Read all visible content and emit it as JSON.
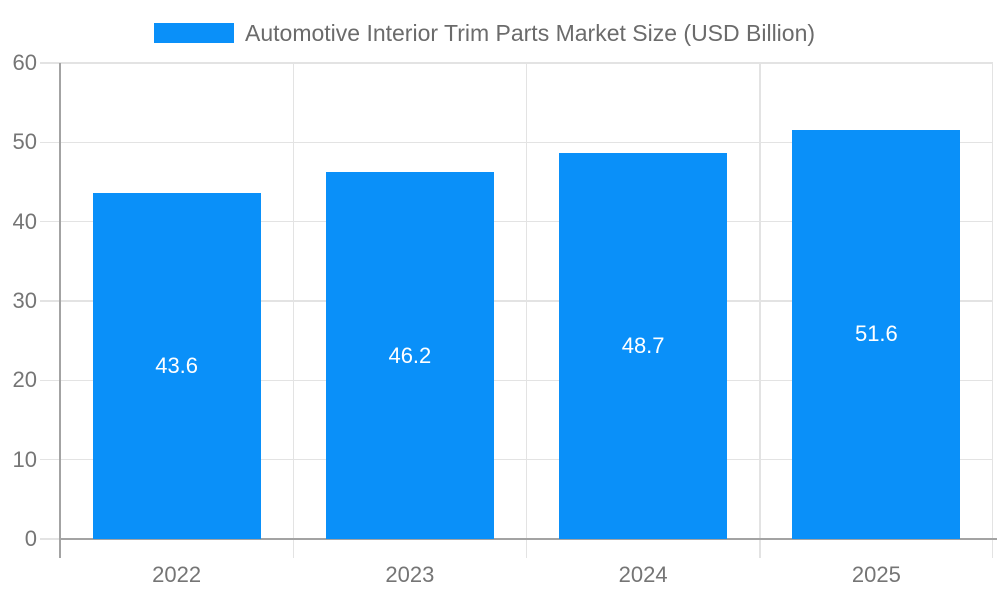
{
  "chart_data": {
    "type": "bar",
    "title": "Automotive Interior Trim Parts Market Size (USD Billion)",
    "categories": [
      "2022",
      "2023",
      "2024",
      "2025"
    ],
    "values": [
      43.6,
      46.2,
      48.7,
      51.6
    ],
    "value_labels": [
      "43.6",
      "46.2",
      "48.7",
      "51.6"
    ],
    "xlabel": "",
    "ylabel": "",
    "ylim": [
      0,
      60
    ],
    "yticks": [
      0,
      10,
      20,
      30,
      40,
      50,
      60
    ],
    "grid": true,
    "legend": {
      "position": "top",
      "label": "Automotive Interior Trim Parts Market Size (USD Billion)"
    },
    "colors": {
      "bar": "#0a90f9",
      "grid": "#e3e3e3",
      "axis": "#a3a3a3",
      "tick_label": "#757575",
      "title_text": "#6b6b6b",
      "value_label": "#ffffff",
      "background": "#ffffff"
    }
  }
}
